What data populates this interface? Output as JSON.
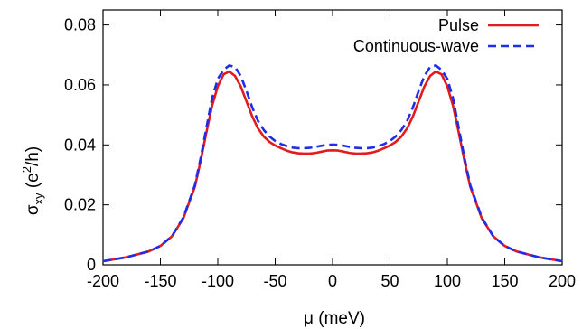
{
  "chart_data": {
    "type": "line",
    "xlabel": "μ (meV)",
    "ylabel": {
      "main": "σ",
      "sub": "xy",
      "unit_open": " (e",
      "sup": "2",
      "unit_close": "/h)"
    },
    "xlim": [
      -200,
      200
    ],
    "ylim": [
      0,
      0.085
    ],
    "xticks": [
      -200,
      -150,
      -100,
      -50,
      0,
      50,
      100,
      150,
      200
    ],
    "yticks": [
      0,
      0.02,
      0.04,
      0.06,
      0.08
    ],
    "ytick_labels": [
      "0",
      "0.02",
      "0.04",
      "0.06",
      "0.08"
    ],
    "grid": false,
    "legend_position": "top-right",
    "series": [
      {
        "name": "Pulse",
        "color": "#e41a1c",
        "style": "solid",
        "x": [
          -200,
          -180,
          -160,
          -150,
          -140,
          -130,
          -120,
          -115,
          -110,
          -105,
          -100,
          -95,
          -90,
          -85,
          -80,
          -75,
          -70,
          -65,
          -60,
          -55,
          -50,
          -45,
          -40,
          -35,
          -30,
          -25,
          -20,
          -15,
          -10,
          -5,
          0,
          5,
          10,
          15,
          20,
          25,
          30,
          35,
          40,
          45,
          50,
          55,
          60,
          65,
          70,
          75,
          80,
          85,
          90,
          95,
          100,
          105,
          110,
          115,
          120,
          130,
          140,
          150,
          160,
          180,
          200
        ],
        "y": [
          0.0012,
          0.0025,
          0.0045,
          0.0063,
          0.0095,
          0.0155,
          0.026,
          0.0345,
          0.044,
          0.053,
          0.0595,
          0.0635,
          0.0645,
          0.063,
          0.0595,
          0.0545,
          0.0495,
          0.0455,
          0.0428,
          0.041,
          0.0398,
          0.0389,
          0.0381,
          0.0375,
          0.0372,
          0.0371,
          0.0371,
          0.0373,
          0.0377,
          0.0381,
          0.0382,
          0.0381,
          0.0377,
          0.0373,
          0.0371,
          0.0371,
          0.0372,
          0.0375,
          0.0381,
          0.0389,
          0.0398,
          0.041,
          0.0428,
          0.0455,
          0.0495,
          0.0545,
          0.0595,
          0.063,
          0.0645,
          0.0635,
          0.0595,
          0.053,
          0.044,
          0.0345,
          0.026,
          0.0155,
          0.0095,
          0.0063,
          0.0045,
          0.0025,
          0.0012
        ]
      },
      {
        "name": "Continuous-wave",
        "color": "#1f2ee6",
        "style": "dashed",
        "x": [
          -200,
          -180,
          -160,
          -150,
          -140,
          -130,
          -120,
          -115,
          -110,
          -105,
          -100,
          -95,
          -90,
          -85,
          -80,
          -75,
          -70,
          -65,
          -60,
          -55,
          -50,
          -45,
          -40,
          -35,
          -30,
          -25,
          -20,
          -15,
          -10,
          -5,
          0,
          5,
          10,
          15,
          20,
          25,
          30,
          35,
          40,
          45,
          50,
          55,
          60,
          65,
          70,
          75,
          80,
          85,
          90,
          95,
          100,
          105,
          110,
          115,
          120,
          130,
          140,
          150,
          160,
          180,
          200
        ],
        "y": [
          0.0012,
          0.0025,
          0.0045,
          0.0063,
          0.0095,
          0.0158,
          0.0265,
          0.0355,
          0.0455,
          0.0555,
          0.062,
          0.065,
          0.0665,
          0.066,
          0.063,
          0.058,
          0.0525,
          0.048,
          0.045,
          0.0428,
          0.0413,
          0.0403,
          0.0396,
          0.0391,
          0.0389,
          0.0389,
          0.039,
          0.0393,
          0.0397,
          0.04,
          0.0401,
          0.04,
          0.0397,
          0.0393,
          0.039,
          0.0389,
          0.0389,
          0.0391,
          0.0396,
          0.0403,
          0.0413,
          0.0428,
          0.045,
          0.048,
          0.0525,
          0.058,
          0.063,
          0.066,
          0.0665,
          0.065,
          0.062,
          0.0555,
          0.0455,
          0.0355,
          0.0265,
          0.0158,
          0.0095,
          0.0063,
          0.0045,
          0.0025,
          0.0012
        ]
      }
    ]
  }
}
